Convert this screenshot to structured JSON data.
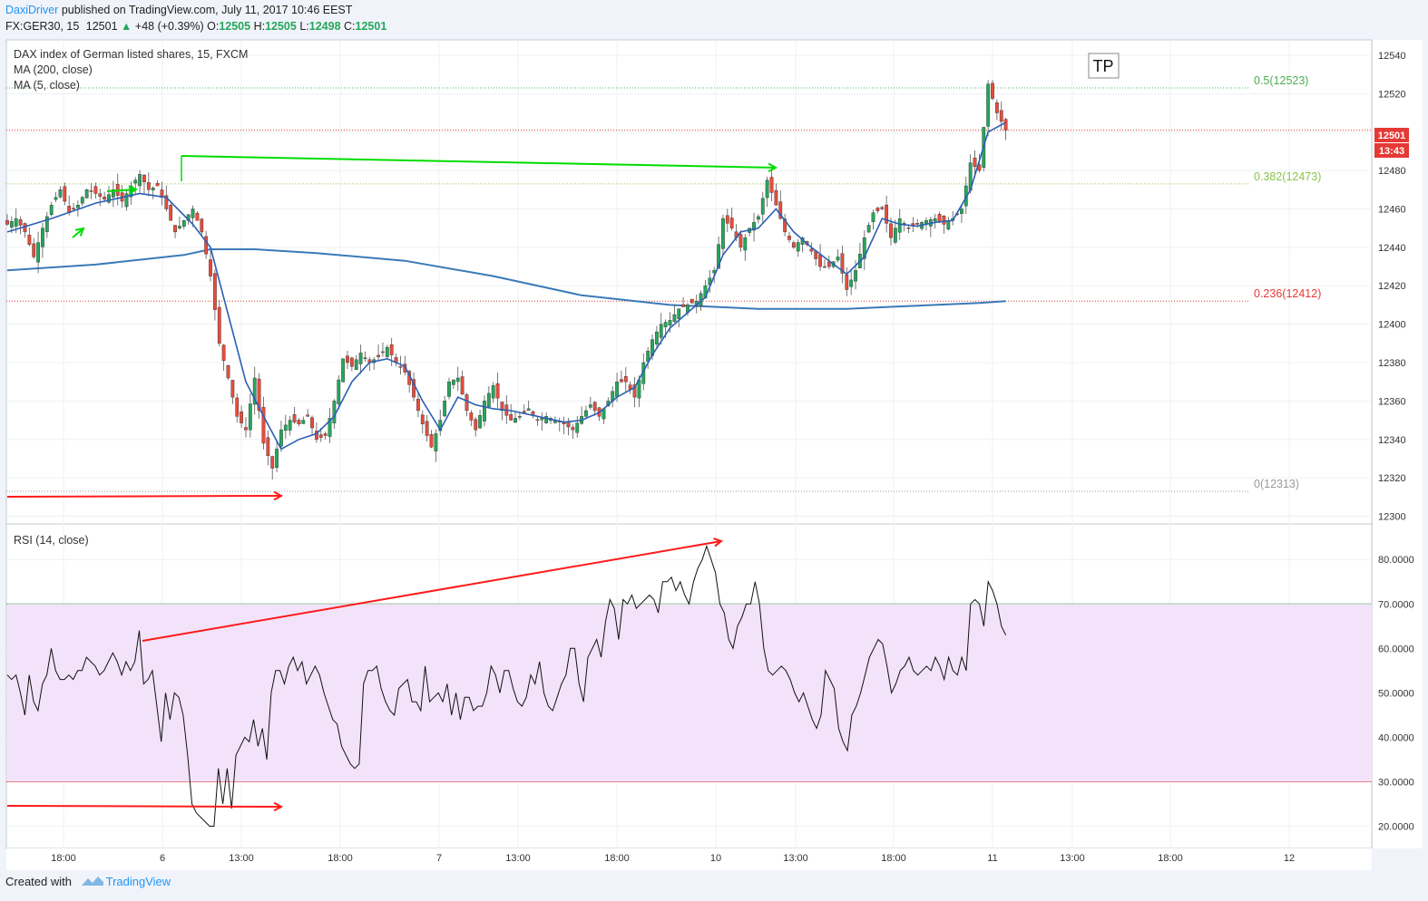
{
  "header": {
    "author": "DaxiDriver",
    "published": "published on TradingView.com, July 11, 2017 10:46 EEST",
    "symbol": "FX:GER30, 15",
    "last": "12501",
    "change": "+48 (+0.39%)",
    "o_label": "O:",
    "o": "12505",
    "h_label": "H:",
    "h": "12505",
    "l_label": "L:",
    "l": "12498",
    "c_label": "C:",
    "c": "12501"
  },
  "legend": {
    "title": "DAX index of German listed shares, 15, FXCM",
    "ma200": "MA (200, close)",
    "ma5": "MA (5, close)",
    "rsi": "RSI (14, close)"
  },
  "tp_label": "TP",
  "footer": {
    "created": "Created with",
    "brand": "TradingView"
  },
  "colors": {
    "up": "#26a65b",
    "down": "#e74c3c",
    "ma200": "#3a7ab8",
    "ma5": "#2a5fb4",
    "arrow_green": "#00dd00",
    "arrow_red": "#ff1a1a",
    "rsi_band": "#f3e3fa",
    "fib_05": "#4caf50",
    "fib_0382": "#8bc34a",
    "fib_0236": "#e53935",
    "fib_0": "#999999",
    "price_tag": "#e53935"
  },
  "chart_data": [
    {
      "type": "candlestick",
      "title": "DAX index of German listed shares, 15, FXCM",
      "price_axis_ticks": [
        12300,
        12320,
        12340,
        12360,
        12380,
        12400,
        12420,
        12440,
        12460,
        12480,
        12500,
        12520,
        12540
      ],
      "ylim": [
        12296,
        12548
      ],
      "time_axis_ticks": [
        "18:00",
        "6",
        "13:00",
        "18:00",
        "7",
        "13:00",
        "18:00",
        "10",
        "13:00",
        "18:00",
        "11",
        "13:00",
        "18:00",
        "12"
      ],
      "current_price": "12501",
      "countdown": "13:43",
      "fib_levels": [
        {
          "label": "0.5(12523)",
          "value": 12523
        },
        {
          "label": "0.382(12473)",
          "value": 12473
        },
        {
          "label": "0.236(12412)",
          "value": 12412
        },
        {
          "label": "0(12313)",
          "value": 12313
        }
      ],
      "close_path": [
        [
          0,
          12452
        ],
        [
          2,
          12455
        ],
        [
          4,
          12448
        ],
        [
          6,
          12435
        ],
        [
          8,
          12450
        ],
        [
          10,
          12462
        ],
        [
          12,
          12470
        ],
        [
          14,
          12458
        ],
        [
          16,
          12462
        ],
        [
          18,
          12470
        ],
        [
          20,
          12468
        ],
        [
          22,
          12465
        ],
        [
          24,
          12470
        ],
        [
          26,
          12464
        ],
        [
          28,
          12472
        ],
        [
          30,
          12478
        ],
        [
          32,
          12470
        ],
        [
          34,
          12472
        ],
        [
          36,
          12460
        ],
        [
          38,
          12448
        ],
        [
          40,
          12454
        ],
        [
          42,
          12460
        ],
        [
          44,
          12448
        ],
        [
          46,
          12425
        ],
        [
          48,
          12390
        ],
        [
          50,
          12372
        ],
        [
          52,
          12352
        ],
        [
          54,
          12345
        ],
        [
          56,
          12372
        ],
        [
          58,
          12338
        ],
        [
          60,
          12325
        ],
        [
          62,
          12345
        ],
        [
          64,
          12350
        ],
        [
          66,
          12348
        ],
        [
          68,
          12352
        ],
        [
          70,
          12340
        ],
        [
          72,
          12342
        ],
        [
          74,
          12360
        ],
        [
          76,
          12382
        ],
        [
          78,
          12378
        ],
        [
          80,
          12385
        ],
        [
          82,
          12380
        ],
        [
          84,
          12383
        ],
        [
          86,
          12388
        ],
        [
          88,
          12380
        ],
        [
          90,
          12375
        ],
        [
          92,
          12362
        ],
        [
          94,
          12348
        ],
        [
          96,
          12336
        ],
        [
          98,
          12350
        ],
        [
          100,
          12370
        ],
        [
          102,
          12372
        ],
        [
          104,
          12355
        ],
        [
          106,
          12345
        ],
        [
          108,
          12360
        ],
        [
          110,
          12368
        ],
        [
          112,
          12355
        ],
        [
          114,
          12350
        ],
        [
          116,
          12352
        ],
        [
          118,
          12356
        ],
        [
          120,
          12350
        ],
        [
          122,
          12352
        ],
        [
          124,
          12350
        ],
        [
          126,
          12348
        ],
        [
          128,
          12345
        ],
        [
          130,
          12352
        ],
        [
          132,
          12358
        ],
        [
          134,
          12352
        ],
        [
          136,
          12360
        ],
        [
          138,
          12370
        ],
        [
          140,
          12370
        ],
        [
          142,
          12362
        ],
        [
          144,
          12380
        ],
        [
          146,
          12392
        ],
        [
          148,
          12400
        ],
        [
          150,
          12402
        ],
        [
          152,
          12408
        ],
        [
          154,
          12410
        ],
        [
          156,
          12412
        ],
        [
          158,
          12420
        ],
        [
          160,
          12428
        ],
        [
          162,
          12455
        ],
        [
          164,
          12450
        ],
        [
          166,
          12440
        ],
        [
          168,
          12450
        ],
        [
          170,
          12456
        ],
        [
          172,
          12475
        ],
        [
          174,
          12462
        ],
        [
          176,
          12448
        ],
        [
          178,
          12440
        ],
        [
          180,
          12445
        ],
        [
          182,
          12438
        ],
        [
          184,
          12430
        ],
        [
          186,
          12430
        ],
        [
          188,
          12435
        ],
        [
          190,
          12418
        ],
        [
          192,
          12428
        ],
        [
          194,
          12445
        ],
        [
          196,
          12458
        ],
        [
          198,
          12460
        ],
        [
          200,
          12445
        ],
        [
          202,
          12455
        ],
        [
          204,
          12450
        ],
        [
          206,
          12452
        ],
        [
          208,
          12454
        ],
        [
          210,
          12455
        ],
        [
          212,
          12452
        ],
        [
          214,
          12455
        ],
        [
          216,
          12460
        ],
        [
          218,
          12484
        ],
        [
          220,
          12480
        ],
        [
          222,
          12525
        ],
        [
          224,
          12510
        ],
        [
          226,
          12501
        ]
      ],
      "volume_profile": null,
      "ma5_path": [
        [
          0,
          12448
        ],
        [
          10,
          12455
        ],
        [
          20,
          12463
        ],
        [
          30,
          12468
        ],
        [
          36,
          12466
        ],
        [
          42,
          12452
        ],
        [
          46,
          12440
        ],
        [
          50,
          12405
        ],
        [
          54,
          12370
        ],
        [
          58,
          12352
        ],
        [
          62,
          12335
        ],
        [
          66,
          12340
        ],
        [
          70,
          12343
        ],
        [
          74,
          12352
        ],
        [
          78,
          12370
        ],
        [
          82,
          12380
        ],
        [
          86,
          12382
        ],
        [
          90,
          12378
        ],
        [
          94,
          12360
        ],
        [
          98,
          12345
        ],
        [
          102,
          12362
        ],
        [
          106,
          12358
        ],
        [
          110,
          12356
        ],
        [
          114,
          12355
        ],
        [
          120,
          12352
        ],
        [
          126,
          12349
        ],
        [
          130,
          12350
        ],
        [
          134,
          12354
        ],
        [
          138,
          12362
        ],
        [
          142,
          12367
        ],
        [
          146,
          12384
        ],
        [
          150,
          12398
        ],
        [
          154,
          12406
        ],
        [
          158,
          12414
        ],
        [
          162,
          12436
        ],
        [
          166,
          12448
        ],
        [
          170,
          12450
        ],
        [
          174,
          12460
        ],
        [
          178,
          12448
        ],
        [
          182,
          12440
        ],
        [
          186,
          12433
        ],
        [
          190,
          12426
        ],
        [
          194,
          12435
        ],
        [
          198,
          12455
        ],
        [
          202,
          12452
        ],
        [
          206,
          12451
        ],
        [
          210,
          12453
        ],
        [
          214,
          12454
        ],
        [
          218,
          12470
        ],
        [
          222,
          12500
        ],
        [
          226,
          12505
        ]
      ],
      "ma200_path": [
        [
          0,
          12428
        ],
        [
          20,
          12431
        ],
        [
          40,
          12436
        ],
        [
          46,
          12439
        ],
        [
          56,
          12439
        ],
        [
          70,
          12437
        ],
        [
          90,
          12433
        ],
        [
          110,
          12425
        ],
        [
          130,
          12415
        ],
        [
          150,
          12410
        ],
        [
          160,
          12409
        ],
        [
          170,
          12408
        ],
        [
          190,
          12408
        ],
        [
          200,
          12409
        ],
        [
          210,
          12410
        ],
        [
          220,
          12411
        ],
        [
          226,
          12412
        ]
      ]
    },
    {
      "type": "line",
      "title": "RSI (14, close)",
      "axis_ticks": [
        "20.0000",
        "30.0000",
        "40.0000",
        "50.0000",
        "60.0000",
        "70.0000",
        "80.0000"
      ],
      "ylim": [
        15,
        88
      ],
      "band": [
        30,
        70
      ],
      "values": [
        54,
        53,
        54,
        50,
        45,
        54,
        48,
        46,
        52,
        54,
        60,
        55,
        53,
        53,
        54,
        53,
        55,
        55,
        58,
        57,
        56,
        54,
        55,
        57,
        59,
        57,
        54,
        57,
        55,
        57,
        64,
        52,
        53,
        55,
        47,
        39,
        50,
        44,
        50,
        49,
        45,
        36,
        25,
        23,
        22,
        21,
        20,
        20,
        33,
        25,
        33,
        24,
        36,
        38,
        40,
        39,
        44,
        38,
        42,
        35,
        50,
        55,
        55,
        52,
        56,
        58,
        55,
        57,
        52,
        54,
        56,
        54,
        50,
        47,
        44,
        43,
        38,
        36,
        34,
        33,
        34,
        52,
        55,
        55,
        56,
        51,
        48,
        46,
        45,
        51,
        52,
        53,
        48,
        48,
        46,
        56,
        48,
        49,
        50,
        48,
        52,
        45,
        50,
        44,
        49,
        49,
        46,
        47,
        47,
        50,
        56,
        54,
        50,
        55,
        55,
        51,
        48,
        47,
        49,
        54,
        52,
        57,
        50,
        47,
        46,
        49,
        52,
        54,
        60,
        60,
        52,
        48,
        58,
        60,
        62,
        58,
        66,
        71,
        69,
        62,
        71,
        70,
        72,
        69,
        70,
        71,
        72,
        71,
        68,
        75,
        75,
        76,
        73,
        75,
        72,
        70,
        75,
        78,
        80,
        83,
        80,
        77,
        70,
        68,
        62,
        60,
        65,
        67,
        70,
        70,
        75,
        70,
        60,
        55,
        54,
        55,
        56,
        55,
        53,
        50,
        48,
        50,
        47,
        44,
        42,
        45,
        55,
        53,
        51,
        42,
        39,
        37,
        45,
        47,
        50,
        54,
        58,
        60,
        62,
        61,
        56,
        50,
        52,
        55,
        56,
        58,
        55,
        54,
        55,
        56,
        55,
        58,
        56,
        53,
        58,
        55,
        54,
        58,
        55,
        70,
        71,
        70,
        65,
        75,
        73,
        70,
        65,
        63
      ],
      "trend_arrow_note": null
    }
  ]
}
